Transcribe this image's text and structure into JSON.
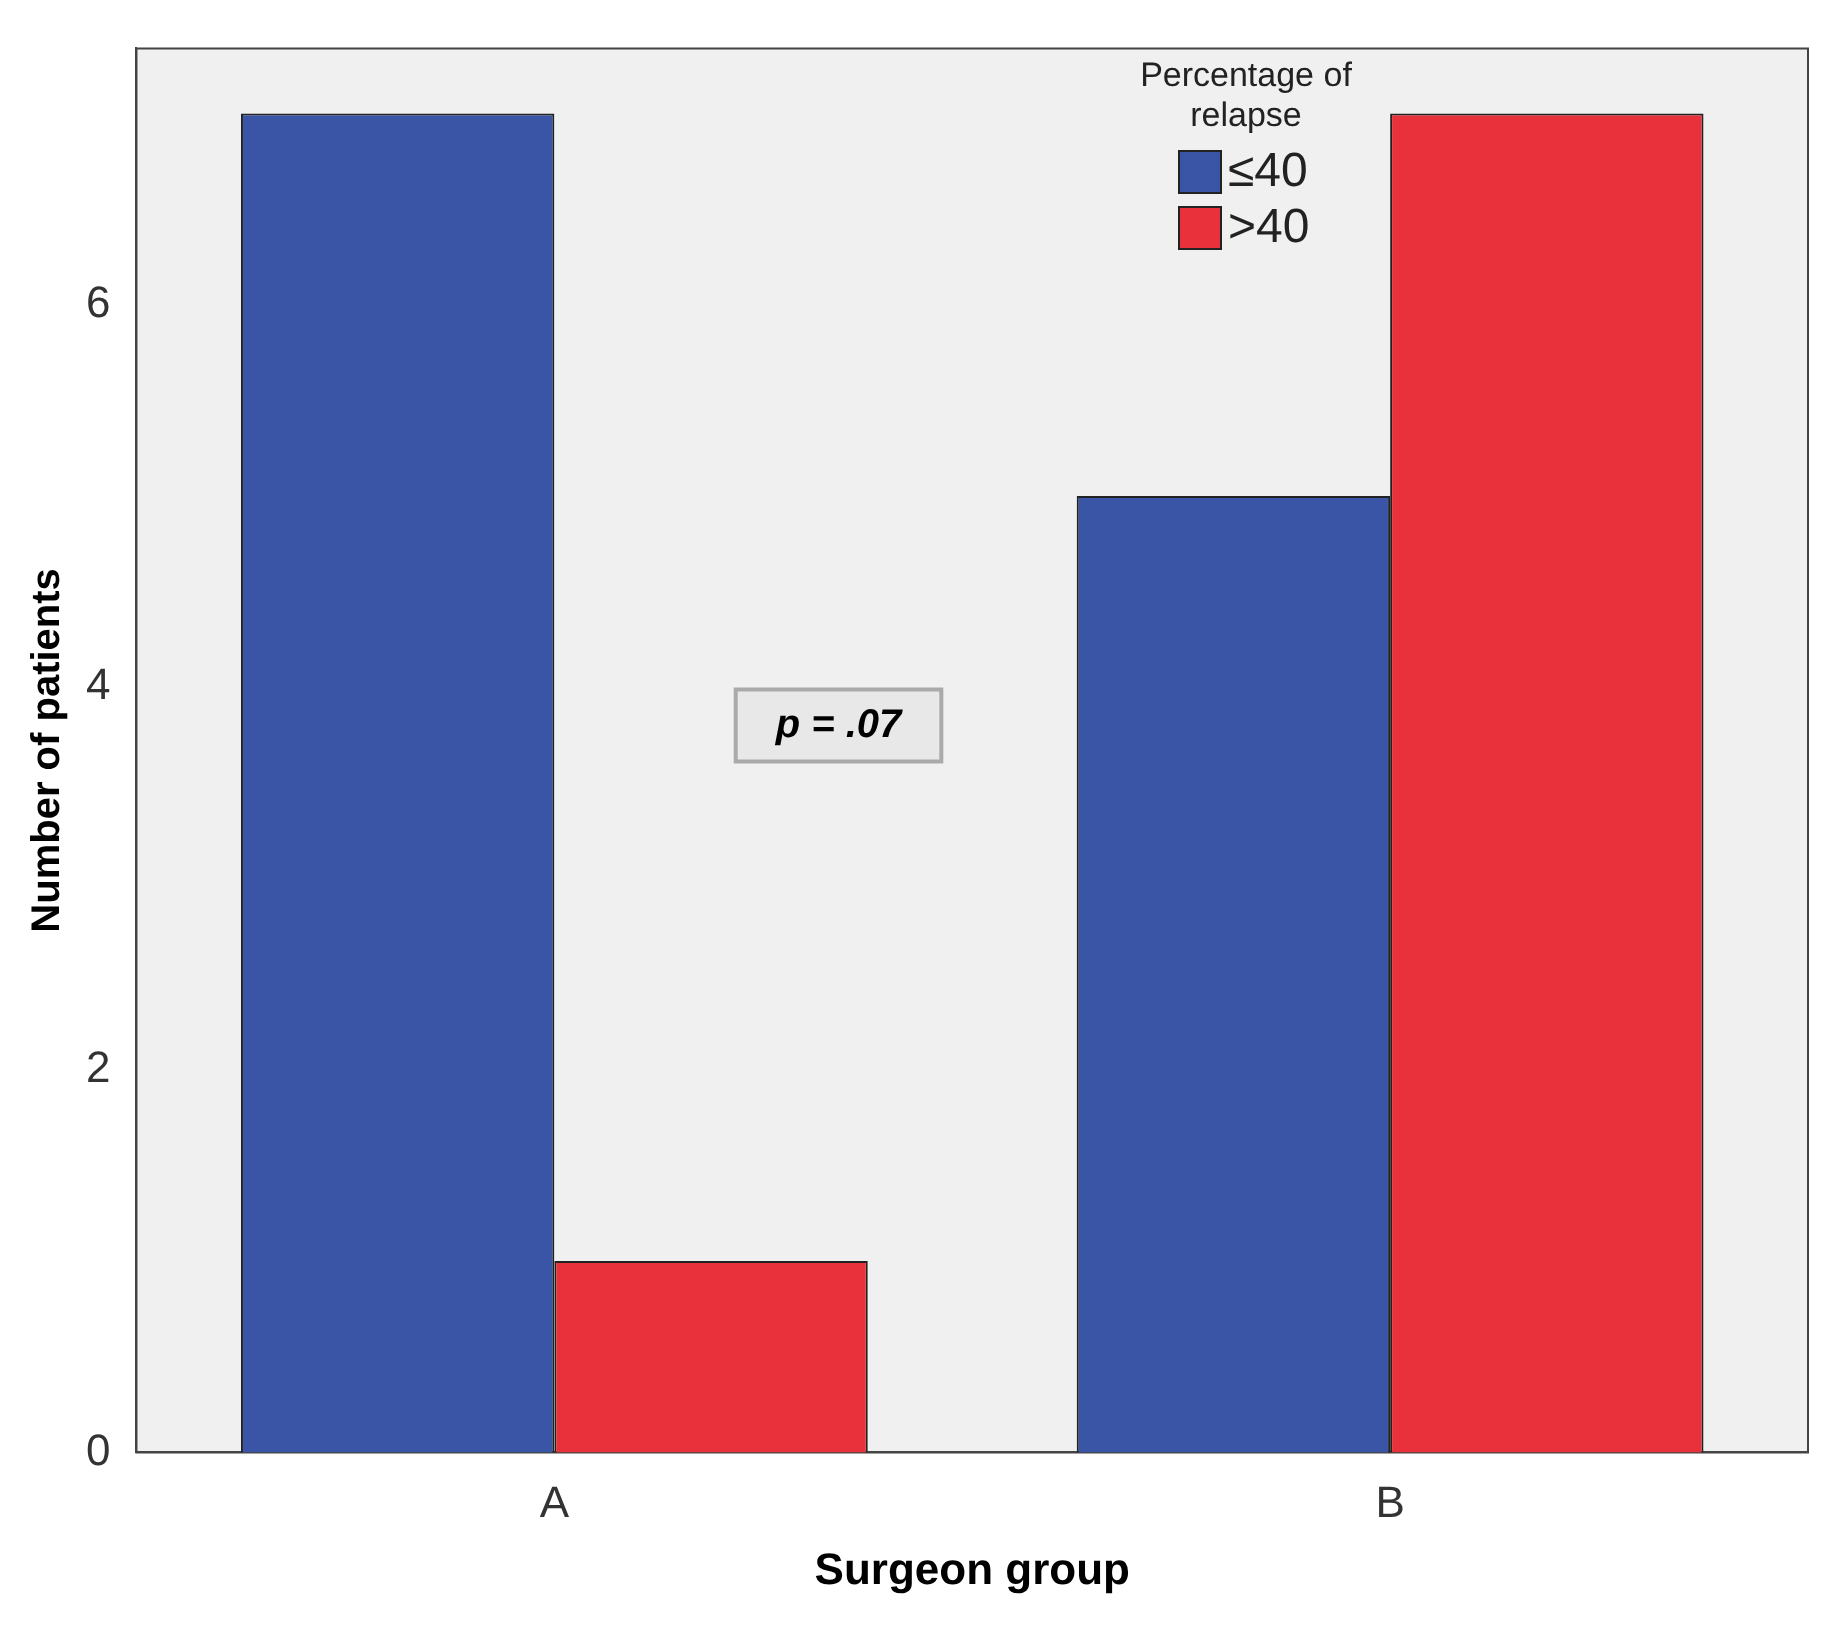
{
  "chart_data": {
    "type": "bar",
    "xlabel": "Surgeon group",
    "ylabel": "Number of patients",
    "legend_title": "Percentage of relapse",
    "categories": [
      "A",
      "B"
    ],
    "series": [
      {
        "name": "≤40",
        "color": "#3a55a5",
        "values": [
          7,
          5
        ]
      },
      {
        "name": ">40",
        "color": "#e8313a",
        "values": [
          1,
          7
        ]
      }
    ],
    "ylim": [
      0,
      7.34
    ],
    "yticks": [
      0,
      2,
      4,
      6
    ],
    "grid": false,
    "legend": "top right",
    "annotations": [
      "p = .07"
    ]
  }
}
